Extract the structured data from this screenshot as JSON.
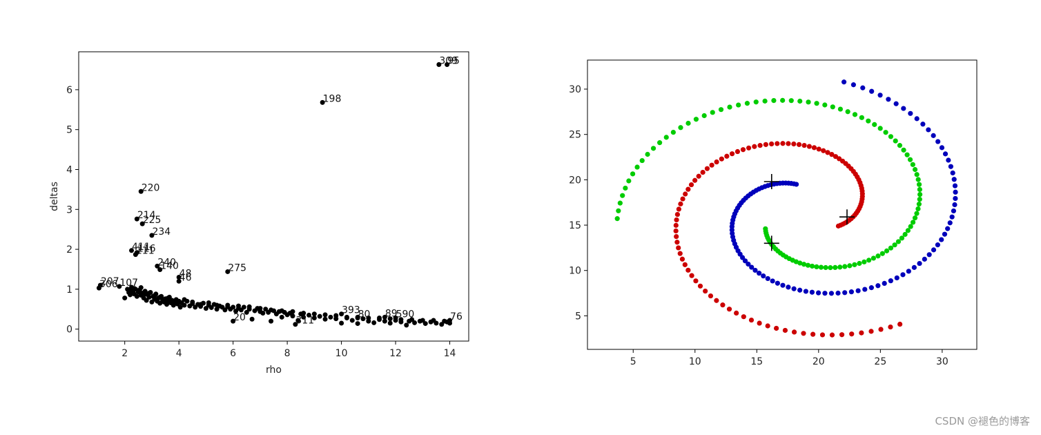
{
  "watermark": "CSDN @褪色的博客",
  "chart_data": [
    {
      "type": "scatter",
      "xlabel": "rho",
      "ylabel": "deltas",
      "xlim": [
        0.3,
        14.7
      ],
      "ylim": [
        -0.3,
        6.95
      ],
      "xticks": [
        2,
        4,
        6,
        8,
        10,
        12,
        14
      ],
      "yticks": [
        0,
        1,
        2,
        3,
        4,
        5,
        6
      ],
      "marker_color": "#000000",
      "labeled_points": [
        {
          "x": 13.6,
          "y": 6.63,
          "label": "309"
        },
        {
          "x": 13.9,
          "y": 6.63,
          "label": "95"
        },
        {
          "x": 9.3,
          "y": 5.68,
          "label": "198"
        },
        {
          "x": 2.6,
          "y": 3.45,
          "label": "220"
        },
        {
          "x": 2.45,
          "y": 2.76,
          "label": "214"
        },
        {
          "x": 2.65,
          "y": 2.64,
          "label": "225"
        },
        {
          "x": 3.0,
          "y": 2.35,
          "label": "234"
        },
        {
          "x": 2.25,
          "y": 1.97,
          "label": "411"
        },
        {
          "x": 2.45,
          "y": 1.92,
          "label": "116"
        },
        {
          "x": 2.4,
          "y": 1.87,
          "label": "111"
        },
        {
          "x": 3.2,
          "y": 1.58,
          "label": "240"
        },
        {
          "x": 3.3,
          "y": 1.49,
          "label": "140"
        },
        {
          "x": 5.8,
          "y": 1.44,
          "label": "275"
        },
        {
          "x": 4.0,
          "y": 1.3,
          "label": "48"
        },
        {
          "x": 4.0,
          "y": 1.2,
          "label": "46"
        },
        {
          "x": 1.1,
          "y": 1.1,
          "label": "207"
        },
        {
          "x": 1.05,
          "y": 1.03,
          "label": "306"
        },
        {
          "x": 1.8,
          "y": 1.07,
          "label": "107"
        },
        {
          "x": 6.0,
          "y": 0.2,
          "label": "20"
        },
        {
          "x": 8.3,
          "y": 0.12,
          "label": "311"
        },
        {
          "x": 10.0,
          "y": 0.38,
          "label": "393"
        },
        {
          "x": 10.6,
          "y": 0.28,
          "label": "80"
        },
        {
          "x": 11.6,
          "y": 0.3,
          "label": "89"
        },
        {
          "x": 12.0,
          "y": 0.28,
          "label": "590"
        },
        {
          "x": 14.0,
          "y": 0.22,
          "label": "76"
        }
      ],
      "dense_points": [
        [
          2.0,
          0.78
        ],
        [
          2.1,
          1.0
        ],
        [
          2.15,
          0.92
        ],
        [
          2.2,
          0.86
        ],
        [
          2.25,
          1.05
        ],
        [
          2.3,
          0.95
        ],
        [
          2.35,
          0.88
        ],
        [
          2.4,
          1.0
        ],
        [
          2.45,
          0.82
        ],
        [
          2.5,
          0.93
        ],
        [
          2.55,
          0.98
        ],
        [
          2.6,
          0.85
        ],
        [
          2.65,
          0.9
        ],
        [
          2.7,
          0.78
        ],
        [
          2.75,
          0.95
        ],
        [
          2.8,
          0.72
        ],
        [
          2.85,
          0.86
        ],
        [
          2.9,
          0.8
        ],
        [
          2.95,
          0.92
        ],
        [
          3.0,
          0.68
        ],
        [
          3.05,
          0.82
        ],
        [
          3.1,
          0.75
        ],
        [
          3.15,
          0.88
        ],
        [
          3.2,
          0.7
        ],
        [
          3.25,
          0.78
        ],
        [
          3.3,
          0.65
        ],
        [
          3.35,
          0.82
        ],
        [
          3.4,
          0.72
        ],
        [
          3.45,
          0.68
        ],
        [
          3.5,
          0.76
        ],
        [
          3.55,
          0.62
        ],
        [
          3.6,
          0.7
        ],
        [
          3.65,
          0.8
        ],
        [
          3.7,
          0.66
        ],
        [
          3.75,
          0.72
        ],
        [
          3.8,
          0.6
        ],
        [
          3.85,
          0.68
        ],
        [
          3.9,
          0.74
        ],
        [
          3.95,
          0.63
        ],
        [
          4.0,
          0.7
        ],
        [
          4.05,
          0.55
        ],
        [
          4.1,
          0.66
        ],
        [
          4.2,
          0.6
        ],
        [
          4.3,
          0.7
        ],
        [
          4.4,
          0.58
        ],
        [
          4.5,
          0.64
        ],
        [
          4.6,
          0.55
        ],
        [
          4.7,
          0.62
        ],
        [
          4.8,
          0.57
        ],
        [
          4.9,
          0.65
        ],
        [
          5.0,
          0.52
        ],
        [
          5.1,
          0.6
        ],
        [
          5.2,
          0.54
        ],
        [
          5.3,
          0.62
        ],
        [
          5.4,
          0.5
        ],
        [
          5.5,
          0.58
        ],
        [
          5.6,
          0.55
        ],
        [
          5.7,
          0.48
        ],
        [
          5.8,
          0.56
        ],
        [
          5.9,
          0.5
        ],
        [
          6.0,
          0.55
        ],
        [
          6.1,
          0.45
        ],
        [
          6.2,
          0.52
        ],
        [
          6.3,
          0.48
        ],
        [
          6.4,
          0.55
        ],
        [
          6.5,
          0.42
        ],
        [
          6.6,
          0.5
        ],
        [
          6.7,
          0.25
        ],
        [
          6.8,
          0.46
        ],
        [
          6.9,
          0.52
        ],
        [
          7.0,
          0.44
        ],
        [
          7.1,
          0.4
        ],
        [
          7.2,
          0.5
        ],
        [
          7.3,
          0.42
        ],
        [
          7.4,
          0.2
        ],
        [
          7.5,
          0.46
        ],
        [
          7.6,
          0.38
        ],
        [
          7.7,
          0.44
        ],
        [
          7.8,
          0.3
        ],
        [
          7.9,
          0.42
        ],
        [
          8.0,
          0.36
        ],
        [
          8.1,
          0.4
        ],
        [
          8.2,
          0.33
        ],
        [
          8.4,
          0.22
        ],
        [
          8.5,
          0.38
        ],
        [
          8.6,
          0.3
        ],
        [
          8.8,
          0.35
        ],
        [
          9.0,
          0.28
        ],
        [
          9.2,
          0.32
        ],
        [
          9.4,
          0.25
        ],
        [
          9.6,
          0.3
        ],
        [
          9.8,
          0.26
        ],
        [
          10.0,
          0.15
        ],
        [
          10.2,
          0.28
        ],
        [
          10.4,
          0.22
        ],
        [
          10.6,
          0.14
        ],
        [
          10.8,
          0.26
        ],
        [
          11.0,
          0.2
        ],
        [
          11.2,
          0.16
        ],
        [
          11.4,
          0.24
        ],
        [
          11.6,
          0.2
        ],
        [
          11.8,
          0.15
        ],
        [
          12.0,
          0.22
        ],
        [
          12.2,
          0.18
        ],
        [
          12.4,
          0.1
        ],
        [
          12.5,
          0.2
        ],
        [
          12.7,
          0.16
        ],
        [
          12.9,
          0.2
        ],
        [
          13.1,
          0.14
        ],
        [
          13.3,
          0.18
        ],
        [
          13.5,
          0.15
        ],
        [
          13.7,
          0.12
        ],
        [
          13.9,
          0.18
        ],
        [
          14.0,
          0.15
        ],
        [
          2.2,
          0.98
        ],
        [
          2.35,
          1.02
        ],
        [
          2.5,
          0.96
        ],
        [
          2.6,
          1.04
        ],
        [
          2.75,
          0.88
        ],
        [
          2.9,
          0.9
        ],
        [
          3.1,
          0.84
        ],
        [
          3.3,
          0.8
        ],
        [
          3.6,
          0.78
        ],
        [
          3.9,
          0.7
        ],
        [
          4.2,
          0.74
        ],
        [
          4.5,
          0.68
        ],
        [
          4.8,
          0.62
        ],
        [
          5.1,
          0.66
        ],
        [
          5.4,
          0.6
        ],
        [
          5.8,
          0.6
        ],
        [
          6.2,
          0.58
        ],
        [
          6.6,
          0.56
        ],
        [
          7.0,
          0.52
        ],
        [
          7.4,
          0.48
        ],
        [
          7.8,
          0.46
        ],
        [
          8.2,
          0.44
        ],
        [
          8.6,
          0.4
        ],
        [
          9.0,
          0.38
        ],
        [
          9.4,
          0.36
        ],
        [
          9.8,
          0.34
        ],
        [
          10.2,
          0.3
        ],
        [
          10.6,
          0.3
        ],
        [
          11.0,
          0.28
        ],
        [
          11.4,
          0.28
        ],
        [
          11.8,
          0.26
        ],
        [
          12.2,
          0.24
        ],
        [
          12.6,
          0.24
        ],
        [
          13.0,
          0.22
        ],
        [
          13.4,
          0.22
        ],
        [
          13.8,
          0.2
        ]
      ]
    },
    {
      "type": "scatter",
      "xlim": [
        1.3,
        32.8
      ],
      "ylim": [
        1.3,
        33.2
      ],
      "xticks": [
        5,
        10,
        15,
        20,
        25,
        30
      ],
      "yticks": [
        5,
        10,
        15,
        20,
        25,
        30
      ],
      "series": [
        {
          "color": "#cc0000",
          "arc": {
            "start": [
              21.6,
              14.9
            ],
            "turns": 1.85
          }
        },
        {
          "color": "#00cc00",
          "arc": {
            "start": [
              15.7,
              14.6
            ],
            "turns": 1.85
          }
        },
        {
          "color": "#0000bb",
          "arc": {
            "start": [
              18.2,
              19.5
            ],
            "turns": 1.85
          }
        }
      ],
      "centers": [
        {
          "x": 22.3,
          "y": 15.9
        },
        {
          "x": 16.2,
          "y": 13.0
        },
        {
          "x": 16.2,
          "y": 19.8
        }
      ]
    }
  ]
}
